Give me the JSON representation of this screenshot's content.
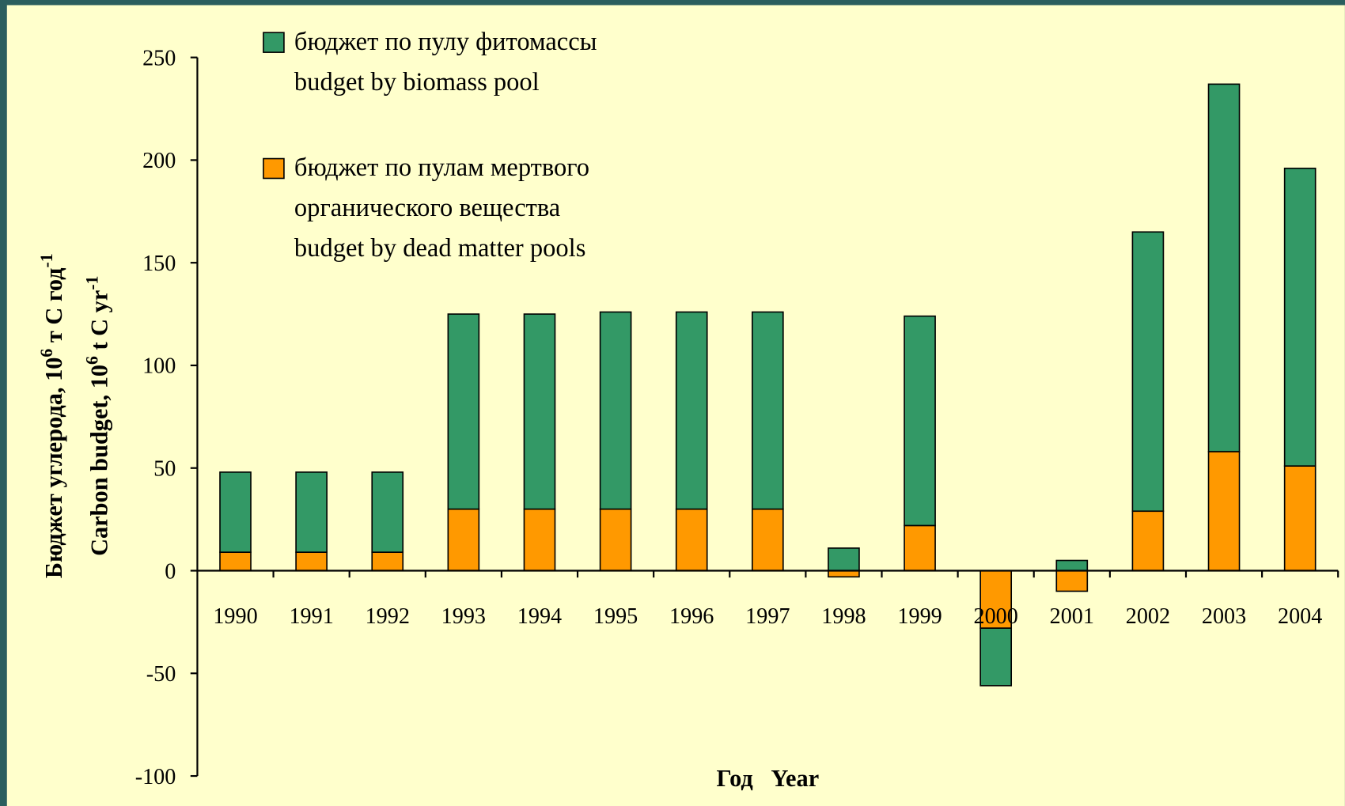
{
  "chart_data": {
    "type": "stacked_bar",
    "y_label": [
      [
        "Бюджет углерода, 10",
        "6",
        " т С год",
        "-1"
      ],
      [
        "Carbon budget, 10",
        "6",
        " t C yr",
        "-1"
      ]
    ],
    "x_label": "Год   Year",
    "categories": [
      "1990",
      "1991",
      "1992",
      "1993",
      "1994",
      "1995",
      "1996",
      "1997",
      "1998",
      "1999",
      "2000",
      "2001",
      "2002",
      "2003",
      "2004"
    ],
    "series": [
      {
        "name": [
          "бюджет по пулам мертвого",
          "органического вещества",
          "budget by dead matter pools"
        ],
        "color": "#ff9900",
        "values": [
          9,
          9,
          9,
          30,
          30,
          30,
          30,
          30,
          -3,
          22,
          -28,
          -10,
          29,
          58,
          51
        ]
      },
      {
        "name": [
          "бюджет по пулу фитомассы",
          "budget by biomass pool"
        ],
        "color": "#339966",
        "values": [
          39,
          39,
          39,
          95,
          95,
          96,
          96,
          96,
          11,
          102,
          -28,
          5,
          136,
          179,
          145
        ]
      }
    ],
    "ylim": [
      -100,
      250
    ],
    "yticks": [
      -100,
      -50,
      0,
      50,
      100,
      150,
      200,
      250
    ],
    "background": "#ffffcc"
  }
}
